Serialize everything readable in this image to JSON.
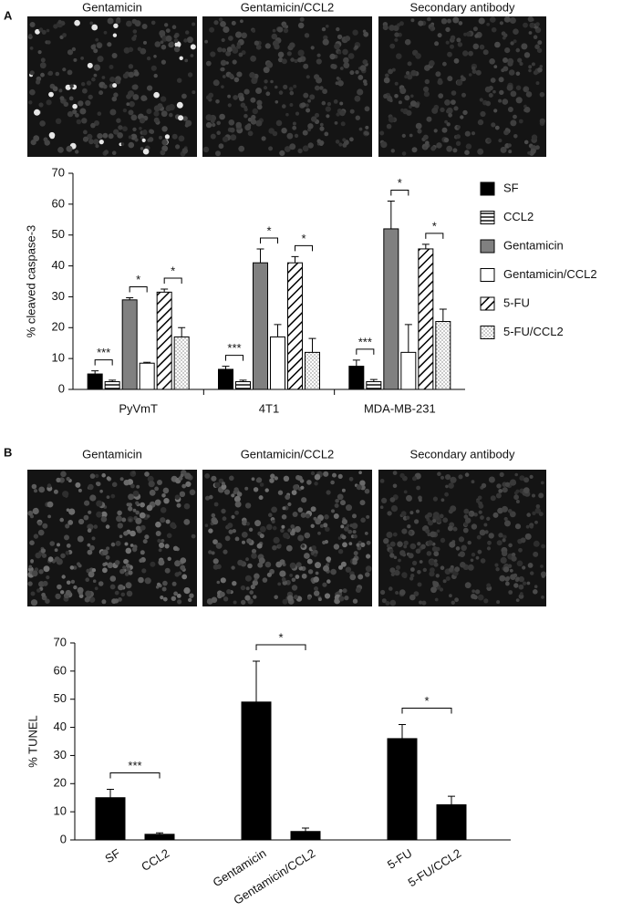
{
  "panels": [
    {
      "label": "A",
      "images": [
        "Gentamicin",
        "Gentamicin/CCL2",
        "Secondary antibody"
      ]
    },
    {
      "label": "B",
      "images": [
        "Gentamicin",
        "Gentamicin/CCL2",
        "Secondary antibody"
      ]
    }
  ],
  "chart_data": [
    {
      "type": "bar",
      "y_label": "% cleaved caspase-3",
      "categories": [
        "PyVmT",
        "4T1",
        "MDA-MB-231"
      ],
      "series": [
        {
          "name": "SF",
          "color": "#000000",
          "pattern": "solid",
          "values": [
            5,
            6.5,
            7.5
          ],
          "errors": [
            1,
            1,
            2
          ]
        },
        {
          "name": "CCL2",
          "color": "#ffffff",
          "pattern": "horizontal",
          "values": [
            2.5,
            2.5,
            2.5
          ],
          "errors": [
            0.5,
            0.5,
            0.7
          ]
        },
        {
          "name": "Gentamicin",
          "color": "#808080",
          "pattern": "solid",
          "values": [
            29,
            41,
            52
          ],
          "errors": [
            0.7,
            4.5,
            9
          ]
        },
        {
          "name": "Gentamicin/CCL2",
          "color": "#ffffff",
          "pattern": "solid",
          "values": [
            8.5,
            17,
            12
          ],
          "errors": [
            0.3,
            4,
            9
          ]
        },
        {
          "name": "5-FU",
          "color": "#ffffff",
          "pattern": "diagonal",
          "values": [
            31.5,
            41,
            45.5
          ],
          "errors": [
            1,
            2,
            1.5
          ]
        },
        {
          "name": "5-FU/CCL2",
          "color": "#ffffff",
          "pattern": "dots",
          "values": [
            17,
            12,
            22
          ],
          "errors": [
            3,
            4.5,
            4
          ]
        }
      ],
      "comparisons": [
        {
          "category": 0,
          "between": [
            0,
            1
          ],
          "label": "***"
        },
        {
          "category": 0,
          "between": [
            2,
            3
          ],
          "label": "*"
        },
        {
          "category": 0,
          "between": [
            4,
            5
          ],
          "label": "*"
        },
        {
          "category": 1,
          "between": [
            0,
            1
          ],
          "label": "***"
        },
        {
          "category": 1,
          "between": [
            2,
            3
          ],
          "label": "*"
        },
        {
          "category": 1,
          "between": [
            4,
            5
          ],
          "label": "*"
        },
        {
          "category": 2,
          "between": [
            0,
            1
          ],
          "label": "***"
        },
        {
          "category": 2,
          "between": [
            2,
            3
          ],
          "label": "*"
        },
        {
          "category": 2,
          "between": [
            4,
            5
          ],
          "label": "*"
        }
      ],
      "ylim": [
        0,
        70
      ],
      "yticks": [
        0,
        10,
        20,
        30,
        40,
        50,
        60,
        70
      ],
      "legend": "right"
    },
    {
      "type": "bar",
      "y_label": "% TUNEL",
      "categories": [
        "SF",
        "CCL2",
        "Gentamicin",
        "Gentamicin/CCL2",
        "5-FU",
        "5-FU/CCL2"
      ],
      "values": [
        15,
        2,
        49,
        3,
        36,
        12.5
      ],
      "errors": [
        3,
        0.5,
        14.5,
        1.2,
        5,
        3
      ],
      "color": "#000000",
      "comparisons": [
        {
          "between": [
            0,
            1
          ],
          "label": "***"
        },
        {
          "between": [
            2,
            3
          ],
          "label": "*"
        },
        {
          "between": [
            4,
            5
          ],
          "label": "*"
        }
      ],
      "ylim": [
        0,
        70
      ],
      "yticks": [
        0,
        10,
        20,
        30,
        40,
        50,
        60,
        70
      ]
    }
  ]
}
